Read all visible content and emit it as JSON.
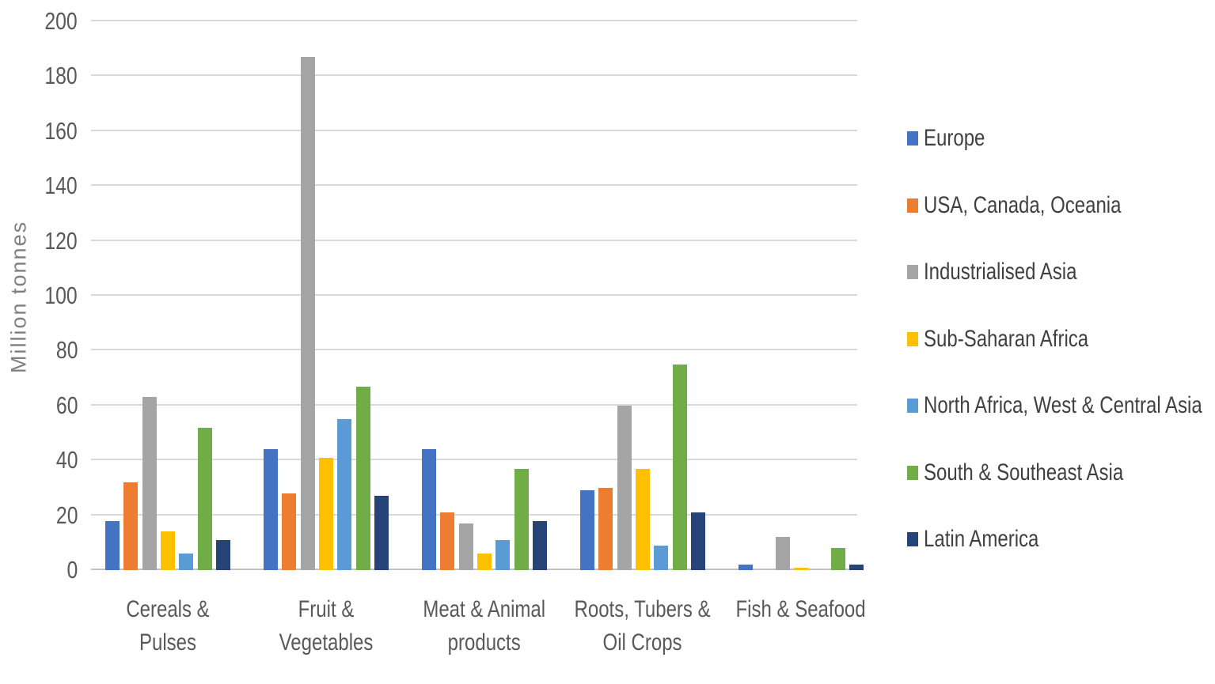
{
  "chart_data": {
    "type": "bar",
    "title": "",
    "ylabel": "Million tonnes",
    "ylim": [
      0,
      200
    ],
    "ytick_step": 20,
    "grid": true,
    "legend_position": "right",
    "categories": [
      "Cereals & Pulses",
      "Fruit & Vegetables",
      "Meat & Animal\nproducts",
      "Roots, Tubers &\nOil Crops",
      "Fish & Seafood"
    ],
    "series": [
      {
        "name": "Europe",
        "color": "#4472C4",
        "values": [
          18,
          44,
          44,
          29,
          2
        ]
      },
      {
        "name": "USA, Canada, Oceania",
        "color": "#ED7D31",
        "values": [
          32,
          28,
          21,
          30,
          0
        ]
      },
      {
        "name": "Industrialised Asia",
        "color": "#A5A5A5",
        "values": [
          63,
          187,
          17,
          60,
          12
        ]
      },
      {
        "name": "Sub-Saharan Africa",
        "color": "#FFC000",
        "values": [
          14,
          41,
          6,
          37,
          1
        ]
      },
      {
        "name": "North Africa, West & Central Asia",
        "color": "#5B9BD5",
        "values": [
          6,
          55,
          11,
          9,
          0
        ]
      },
      {
        "name": "South & Southeast Asia",
        "color": "#70AD47",
        "values": [
          52,
          67,
          37,
          75,
          8
        ]
      },
      {
        "name": "Latin America",
        "color": "#264478",
        "values": [
          11,
          27,
          18,
          21,
          2
        ]
      }
    ]
  },
  "colors": {
    "background": "#ffffff",
    "gridline": "#d9d9d9",
    "axis_line": "#c3c3c3",
    "tick_label": "#595959",
    "category_label": "#595959",
    "legend_label": "#404040",
    "axis_title": "#7f7f7f"
  }
}
